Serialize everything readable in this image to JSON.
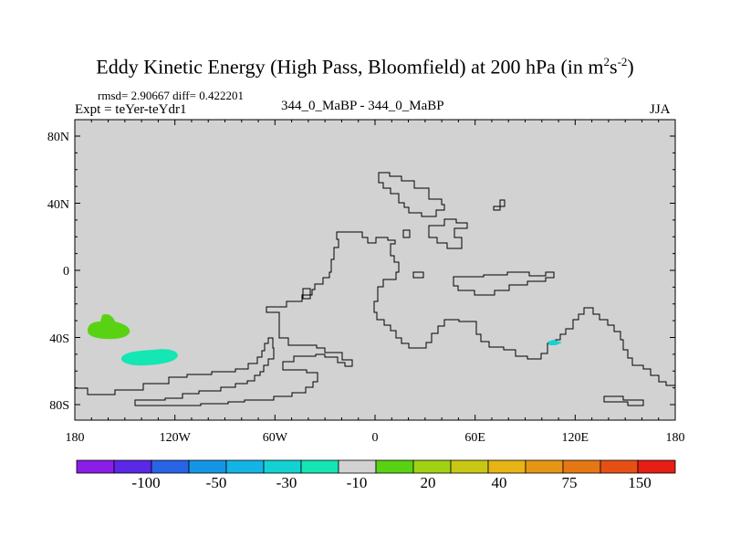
{
  "title": {
    "main": "Eddy Kinetic Energy (High Pass, Bloomfield) at 200 hPa (in m",
    "sup1": "2",
    "mid": "s",
    "sup2": "-2",
    "end": ")"
  },
  "stats": {
    "rmsd_diff": "rmsd= 2.90667 diff= 0.422201"
  },
  "header": {
    "expt": "Expt = teYer-teYdr1",
    "case": "344_0_MaBP - 344_0_MaBP",
    "season": "JJA"
  },
  "axes": {
    "lat_labels": [
      "80N",
      "40N",
      "0",
      "40S",
      "80S"
    ],
    "lon_labels": [
      "180",
      "120W",
      "60W",
      "0",
      "60E",
      "120E",
      "180"
    ]
  },
  "colorbar": {
    "labels": [
      "-100",
      "-50",
      "-30",
      "-10",
      "20",
      "40",
      "75",
      "150"
    ],
    "colors": [
      "#8a1ee6",
      "#5a28e6",
      "#2864e6",
      "#1496e6",
      "#14b4e6",
      "#14d2d2",
      "#14e6b4",
      "#d2d2d2",
      "#5ad214",
      "#a0d214",
      "#c8c814",
      "#e6b414",
      "#e69614",
      "#e67814",
      "#e65014",
      "#e61e14"
    ]
  },
  "colors": {
    "land_bg": "#d2d2d2",
    "anomaly_green": "#5ad214",
    "anomaly_teal": "#14e6b4",
    "anomaly_cyan": "#14d2d2"
  }
}
